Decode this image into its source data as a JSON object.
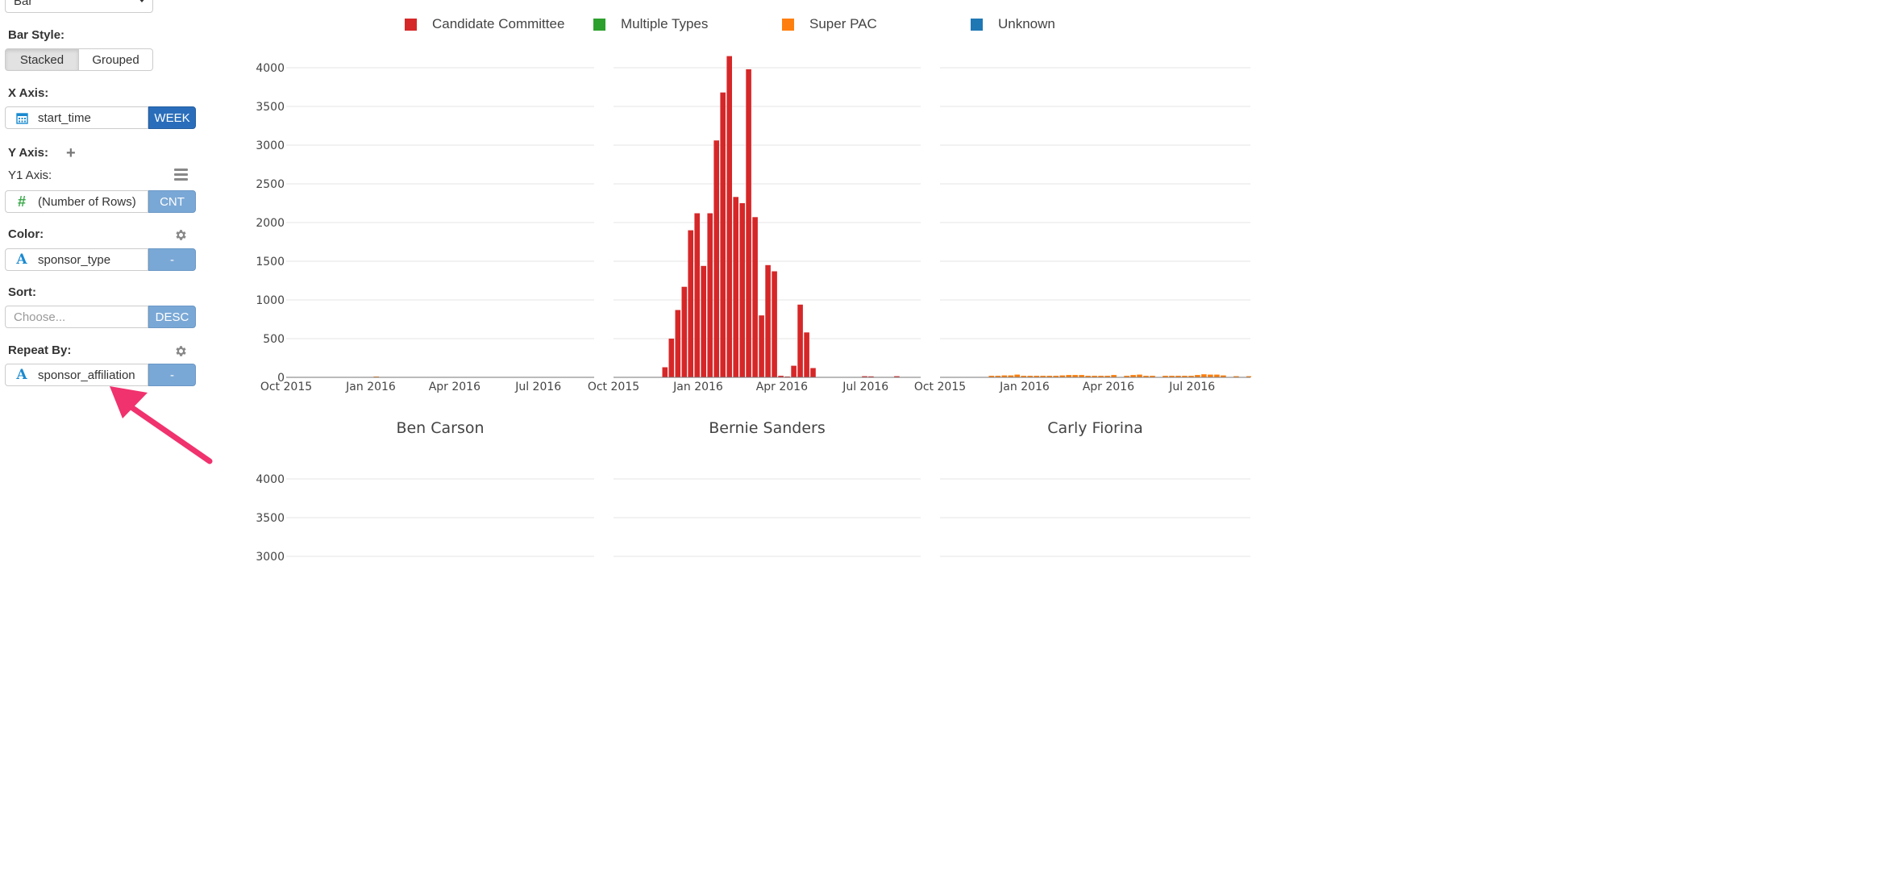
{
  "sidebar": {
    "chart_type_value": "Bar",
    "bar_style_label": "Bar Style:",
    "bar_style_options": [
      "Stacked",
      "Grouped"
    ],
    "bar_style_selected": "Stacked",
    "x_axis_label": "X Axis:",
    "x_axis_field": "start_time",
    "x_axis_unit": "WEEK",
    "y_axis_label": "Y Axis:",
    "y1_axis_label": "Y1 Axis:",
    "y1_field": "(Number of Rows)",
    "y1_agg": "CNT",
    "color_label": "Color:",
    "color_field": "sponsor_type",
    "color_opt": "-",
    "sort_label": "Sort:",
    "sort_placeholder": "Choose...",
    "sort_order": "DESC",
    "repeat_label": "Repeat By:",
    "repeat_field": "sponsor_affiliation",
    "repeat_opt": "-",
    "icons": [
      "calendar-icon",
      "hash-icon",
      "text-a-icon",
      "gear-icon",
      "plus-icon",
      "menu-icon",
      "chevron-down-icon"
    ]
  },
  "legend": [
    {
      "name": "Candidate Committee",
      "color": "#d62728"
    },
    {
      "name": "Multiple Types",
      "color": "#2ca02c"
    },
    {
      "name": "Super PAC",
      "color": "#ff7f0e"
    },
    {
      "name": "Unknown",
      "color": "#1f77b4"
    }
  ],
  "annotation": {
    "type": "arrow",
    "color": "#f0326e",
    "points_to": "repeat_field"
  },
  "chart_data": {
    "type": "bar",
    "bar_mode": "stacked",
    "x_ticks": [
      "Oct 2015",
      "Jan 2016",
      "Apr 2016",
      "Jul 2016"
    ],
    "y_ticks": [
      0,
      500,
      1000,
      1500,
      2000,
      2500,
      3000,
      3500,
      4000
    ],
    "ylim": [
      0,
      4150
    ],
    "grid": true,
    "legend_position": "top",
    "panels": [
      {
        "title": "",
        "series": [
          {
            "name": "Super PAC",
            "color": "#ff7f0e",
            "points": [
              [
                "2016-01-04",
                10
              ]
            ]
          }
        ]
      },
      {
        "title": "",
        "series": [
          {
            "name": "Candidate Committee",
            "color": "#d62728",
            "points": [
              [
                "2015-11-23",
                130
              ],
              [
                "2015-11-30",
                500
              ],
              [
                "2015-12-07",
                870
              ],
              [
                "2015-12-14",
                1170
              ],
              [
                "2015-12-21",
                1900
              ],
              [
                "2015-12-28",
                2120
              ],
              [
                "2016-01-04",
                1440
              ],
              [
                "2016-01-11",
                2120
              ],
              [
                "2016-01-18",
                3060
              ],
              [
                "2016-01-25",
                3680
              ],
              [
                "2016-02-01",
                4150
              ],
              [
                "2016-02-08",
                2330
              ],
              [
                "2016-02-15",
                2250
              ],
              [
                "2016-02-22",
                3980
              ],
              [
                "2016-02-29",
                2070
              ],
              [
                "2016-03-07",
                800
              ],
              [
                "2016-03-14",
                1450
              ],
              [
                "2016-03-21",
                1370
              ],
              [
                "2016-03-28",
                20
              ],
              [
                "2016-04-04",
                10
              ],
              [
                "2016-04-11",
                150
              ],
              [
                "2016-04-18",
                940
              ],
              [
                "2016-04-25",
                580
              ],
              [
                "2016-05-02",
                120
              ],
              [
                "2016-06-27",
                15
              ],
              [
                "2016-07-04",
                12
              ],
              [
                "2016-08-01",
                15
              ]
            ]
          }
        ]
      },
      {
        "title": "",
        "series": [
          {
            "name": "Super PAC",
            "color": "#ff7f0e",
            "points": [
              [
                "2015-11-23",
                20
              ],
              [
                "2015-11-30",
                20
              ],
              [
                "2015-12-07",
                25
              ],
              [
                "2015-12-14",
                25
              ],
              [
                "2015-12-21",
                35
              ],
              [
                "2015-12-28",
                20
              ],
              [
                "2016-01-04",
                20
              ],
              [
                "2016-01-11",
                20
              ],
              [
                "2016-01-18",
                20
              ],
              [
                "2016-01-25",
                20
              ],
              [
                "2016-02-01",
                20
              ],
              [
                "2016-02-08",
                25
              ],
              [
                "2016-02-15",
                30
              ],
              [
                "2016-02-22",
                30
              ],
              [
                "2016-02-29",
                30
              ],
              [
                "2016-03-07",
                20
              ],
              [
                "2016-03-14",
                20
              ],
              [
                "2016-03-21",
                20
              ],
              [
                "2016-03-28",
                20
              ],
              [
                "2016-04-04",
                30
              ],
              [
                "2016-04-18",
                20
              ],
              [
                "2016-04-25",
                30
              ],
              [
                "2016-05-02",
                35
              ],
              [
                "2016-05-09",
                20
              ],
              [
                "2016-05-16",
                20
              ],
              [
                "2016-05-30",
                20
              ],
              [
                "2016-06-06",
                20
              ],
              [
                "2016-06-13",
                20
              ],
              [
                "2016-06-20",
                20
              ],
              [
                "2016-06-27",
                20
              ],
              [
                "2016-07-04",
                30
              ],
              [
                "2016-07-11",
                40
              ],
              [
                "2016-07-18",
                35
              ],
              [
                "2016-07-25",
                35
              ],
              [
                "2016-08-01",
                25
              ],
              [
                "2016-08-15",
                15
              ],
              [
                "2016-08-29",
                15
              ]
            ]
          }
        ]
      },
      {
        "title": "Ben Carson",
        "series": []
      },
      {
        "title": "Bernie Sanders",
        "series": []
      },
      {
        "title": "Carly Fiorina",
        "series": []
      }
    ]
  }
}
